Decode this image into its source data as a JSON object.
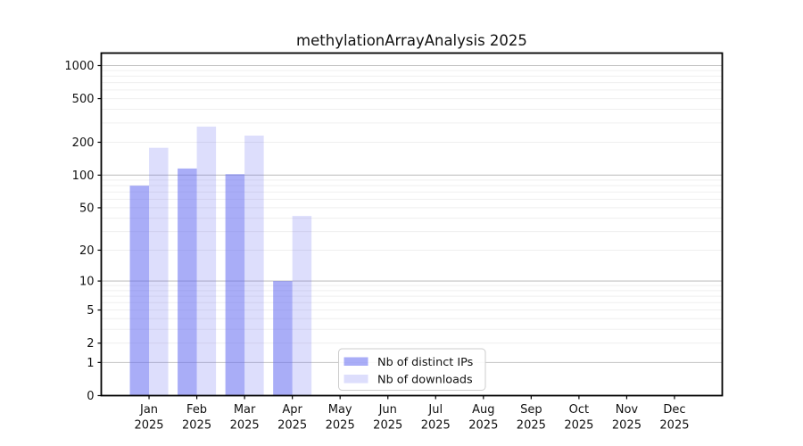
{
  "chart_data": {
    "type": "bar",
    "title": "methylationArrayAnalysis 2025",
    "xlabel": "",
    "ylabel": "",
    "year": "2025",
    "categories": [
      "Jan 2025",
      "Feb 2025",
      "Mar 2025",
      "Apr 2025",
      "May 2025",
      "Jun 2025",
      "Jul 2025",
      "Aug 2025",
      "Sep 2025",
      "Oct 2025",
      "Nov 2025",
      "Dec 2025"
    ],
    "series": [
      {
        "name": "Nb of distinct IPs",
        "color": "rgba(99,106,240,0.55)",
        "legend_color": "#a9adf7",
        "values": [
          80,
          115,
          102,
          10,
          0,
          0,
          0,
          0,
          0,
          0,
          0,
          0
        ]
      },
      {
        "name": "Nb of downloads",
        "color": "rgba(99,106,240,0.22)",
        "legend_color": "#dcdefc",
        "values": [
          178,
          278,
          230,
          42,
          0,
          0,
          0,
          0,
          0,
          0,
          0,
          0
        ]
      }
    ],
    "y_axis": {
      "scale": "log10(1+x)",
      "tick_values": [
        0,
        1,
        2,
        5,
        10,
        20,
        50,
        100,
        200,
        500,
        1000
      ],
      "ylim": [
        0,
        1310
      ]
    },
    "grid": {
      "on": true,
      "major_values": [
        1,
        10,
        100,
        1000
      ],
      "minor_color": "#efefef",
      "major_color": "#c3c3c3"
    },
    "legend": {
      "position": "lower-center",
      "border_color": "#cccccc",
      "background": "#ffffff"
    },
    "colors": {
      "axis": "#000000",
      "text": "#111111",
      "background": "#ffffff"
    }
  }
}
